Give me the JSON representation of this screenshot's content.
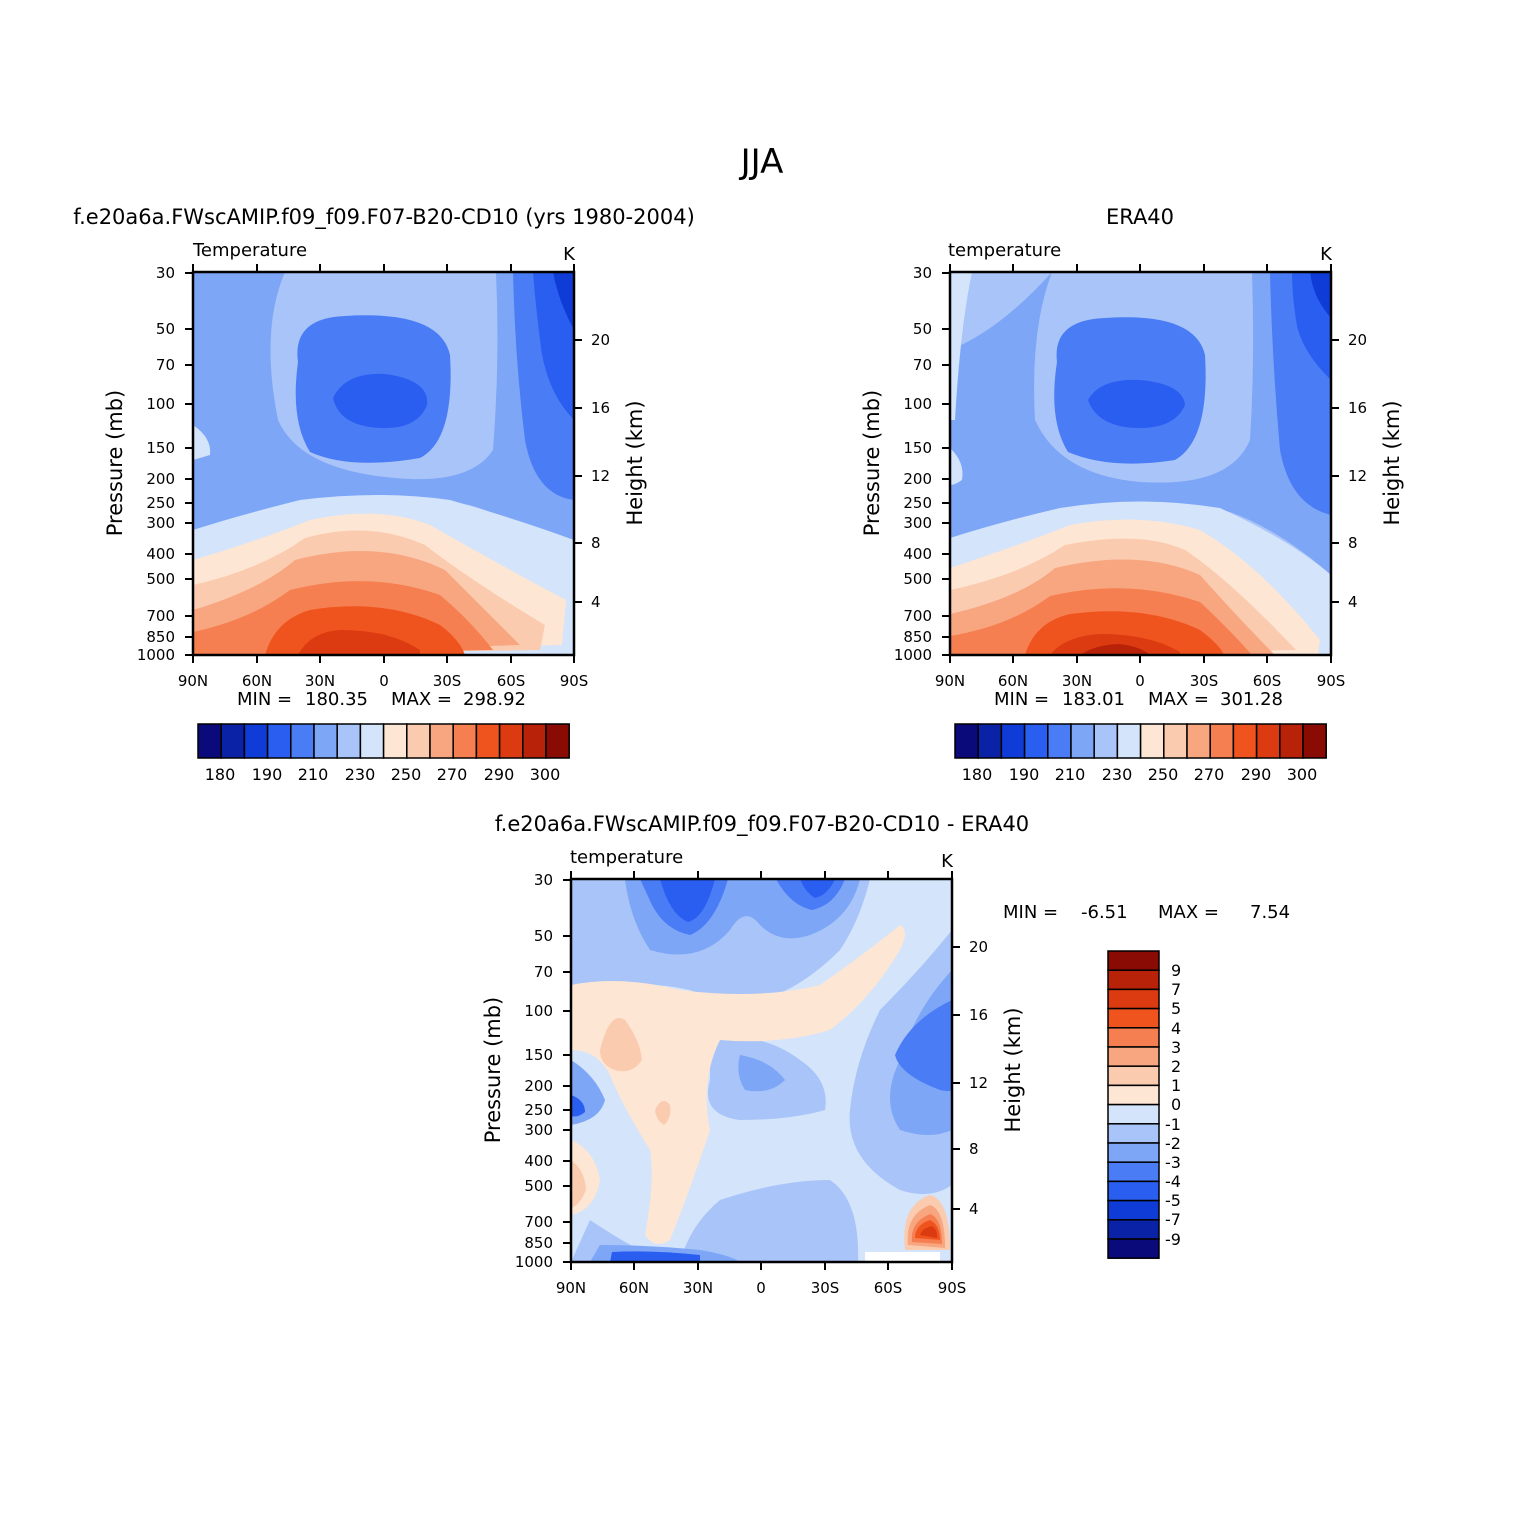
{
  "page_title": "JJA",
  "chart_data": [
    {
      "type": "heatmap",
      "title": "f.e20a6a.FWscAMIP.f09_f09.F07-B20-CD10 (yrs 1980-2004)",
      "left_label": "Temperature",
      "units": "K",
      "ylabel": "Pressure (mb)",
      "y2label": "Height (km)",
      "xticks": [
        "90N",
        "60N",
        "30N",
        "0",
        "30S",
        "60S",
        "90S"
      ],
      "yticks": [
        "30",
        "50",
        "70",
        "100",
        "150",
        "200",
        "250",
        "300",
        "400",
        "500",
        "700",
        "850",
        "1000"
      ],
      "y2ticks": [
        "20",
        "16",
        "12",
        "8",
        "4"
      ],
      "min_label": "MIN =",
      "min_value": "180.35",
      "max_label": "MAX =",
      "max_value": "298.92",
      "colorbar_labels": [
        "180",
        "190",
        "210",
        "230",
        "250",
        "270",
        "290",
        "300"
      ],
      "colorbar_colors": [
        "#0a0a7a",
        "#0a22a6",
        "#0f3cd6",
        "#2a5ef0",
        "#4a7cf5",
        "#7ea6f7",
        "#a8c4f8",
        "#d3e4fb",
        "#fde6d4",
        "#fbcbb0",
        "#f8a680",
        "#f57f50",
        "#f0541e",
        "#dc3a10",
        "#b72208",
        "#8a0a04"
      ],
      "data_note": ""
    },
    {
      "type": "heatmap",
      "title": "ERA40",
      "left_label": "temperature",
      "units": "K",
      "ylabel": "Pressure (mb)",
      "y2label": "Height (km)",
      "xticks": [
        "90N",
        "60N",
        "30N",
        "0",
        "30S",
        "60S",
        "90S"
      ],
      "yticks": [
        "30",
        "50",
        "70",
        "100",
        "150",
        "200",
        "250",
        "300",
        "400",
        "500",
        "700",
        "850",
        "1000"
      ],
      "y2ticks": [
        "20",
        "16",
        "12",
        "8",
        "4"
      ],
      "min_label": "MIN =",
      "min_value": "183.01",
      "max_label": "MAX =",
      "max_value": "301.28",
      "colorbar_labels": [
        "180",
        "190",
        "210",
        "230",
        "250",
        "270",
        "290",
        "300"
      ],
      "colorbar_colors": [
        "#0a0a7a",
        "#0a22a6",
        "#0f3cd6",
        "#2a5ef0",
        "#4a7cf5",
        "#7ea6f7",
        "#a8c4f8",
        "#d3e4fb",
        "#fde6d4",
        "#fbcbb0",
        "#f8a680",
        "#f57f50",
        "#f0541e",
        "#dc3a10",
        "#b72208",
        "#8a0a04"
      ]
    },
    {
      "type": "heatmap",
      "title": "f.e20a6a.FWscAMIP.f09_f09.F07-B20-CD10 - ERA40",
      "left_label": "temperature",
      "units": "K",
      "ylabel": "Pressure (mb)",
      "y2label": "Height (km)",
      "xticks": [
        "90N",
        "60N",
        "30N",
        "0",
        "30S",
        "60S",
        "90S"
      ],
      "yticks": [
        "30",
        "50",
        "70",
        "100",
        "150",
        "200",
        "250",
        "300",
        "400",
        "500",
        "700",
        "850",
        "1000"
      ],
      "y2ticks": [
        "20",
        "16",
        "12",
        "8",
        "4"
      ],
      "min_label": "MIN =",
      "min_value": "-6.51",
      "max_label": "MAX =",
      "max_value": "7.54",
      "colorbar_labels": [
        "9",
        "7",
        "5",
        "4",
        "3",
        "2",
        "1",
        "0",
        "-1",
        "-2",
        "-3",
        "-4",
        "-5",
        "-7",
        "-9"
      ],
      "colorbar_colors": [
        "#8a0a04",
        "#b72208",
        "#dc3a10",
        "#f0541e",
        "#f57f50",
        "#f8a680",
        "#fbcbb0",
        "#fde6d4",
        "#d3e4fb",
        "#a8c4f8",
        "#7ea6f7",
        "#4a7cf5",
        "#2a5ef0",
        "#0f3cd6",
        "#0a22a6",
        "#0a0a7a"
      ]
    }
  ]
}
